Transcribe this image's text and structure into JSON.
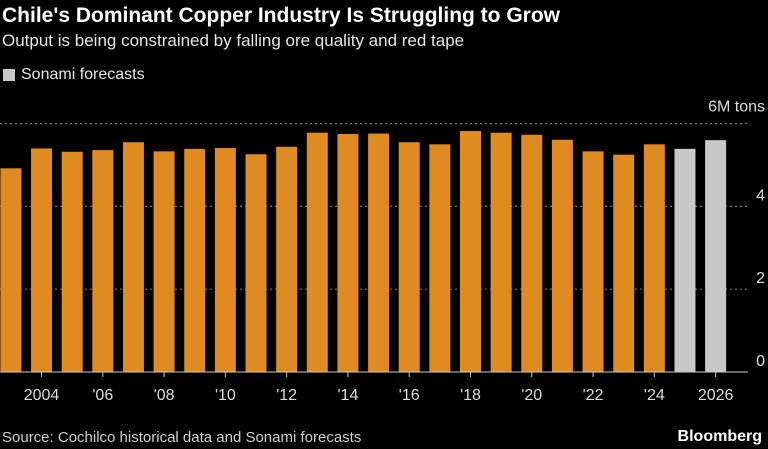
{
  "chart_data": {
    "type": "bar",
    "title": "Chile's Dominant Copper Industry Is Struggling to Grow",
    "subtitle": "Output is being constrained by falling ore quality and red tape",
    "legend": [
      {
        "name": "Sonami forecasts",
        "color": "#c8c8c8"
      }
    ],
    "legend_placement": "top-left",
    "unit_label": "6M tons",
    "categories": [
      2003,
      2004,
      2005,
      2006,
      2007,
      2008,
      2009,
      2010,
      2011,
      2012,
      2013,
      2014,
      2015,
      2016,
      2017,
      2018,
      2019,
      2020,
      2021,
      2022,
      2023,
      2024,
      2025,
      2026
    ],
    "values": [
      4.92,
      5.4,
      5.32,
      5.36,
      5.55,
      5.33,
      5.39,
      5.41,
      5.26,
      5.44,
      5.78,
      5.75,
      5.76,
      5.55,
      5.5,
      5.82,
      5.78,
      5.73,
      5.61,
      5.33,
      5.25,
      5.5,
      5.39,
      5.6
    ],
    "forecast": [
      false,
      false,
      false,
      false,
      false,
      false,
      false,
      false,
      false,
      false,
      false,
      false,
      false,
      false,
      false,
      false,
      false,
      false,
      false,
      false,
      false,
      false,
      true,
      true
    ],
    "colors": {
      "historical": "#e08a22",
      "forecast": "#c8c8c8"
    },
    "x_tick_labels": [
      {
        "year": 2004,
        "label": "2004"
      },
      {
        "year": 2006,
        "label": "'06"
      },
      {
        "year": 2008,
        "label": "'08"
      },
      {
        "year": 2010,
        "label": "'10"
      },
      {
        "year": 2012,
        "label": "'12"
      },
      {
        "year": 2014,
        "label": "'14"
      },
      {
        "year": 2016,
        "label": "'16"
      },
      {
        "year": 2018,
        "label": "'18"
      },
      {
        "year": 2020,
        "label": "'20"
      },
      {
        "year": 2022,
        "label": "'22"
      },
      {
        "year": 2024,
        "label": "'24"
      },
      {
        "year": 2026,
        "label": "2026"
      }
    ],
    "y_ticks": [
      {
        "value": 0,
        "label": "0"
      },
      {
        "value": 2,
        "label": "2"
      },
      {
        "value": 4,
        "label": "4"
      },
      {
        "value": 6,
        "label": ""
      }
    ],
    "ylim": [
      0,
      6
    ],
    "grid": true,
    "axis_position_y": "right"
  },
  "footer": {
    "source": "Source: Cochilco historical data and Sonami forecasts",
    "brand": "Bloomberg"
  }
}
